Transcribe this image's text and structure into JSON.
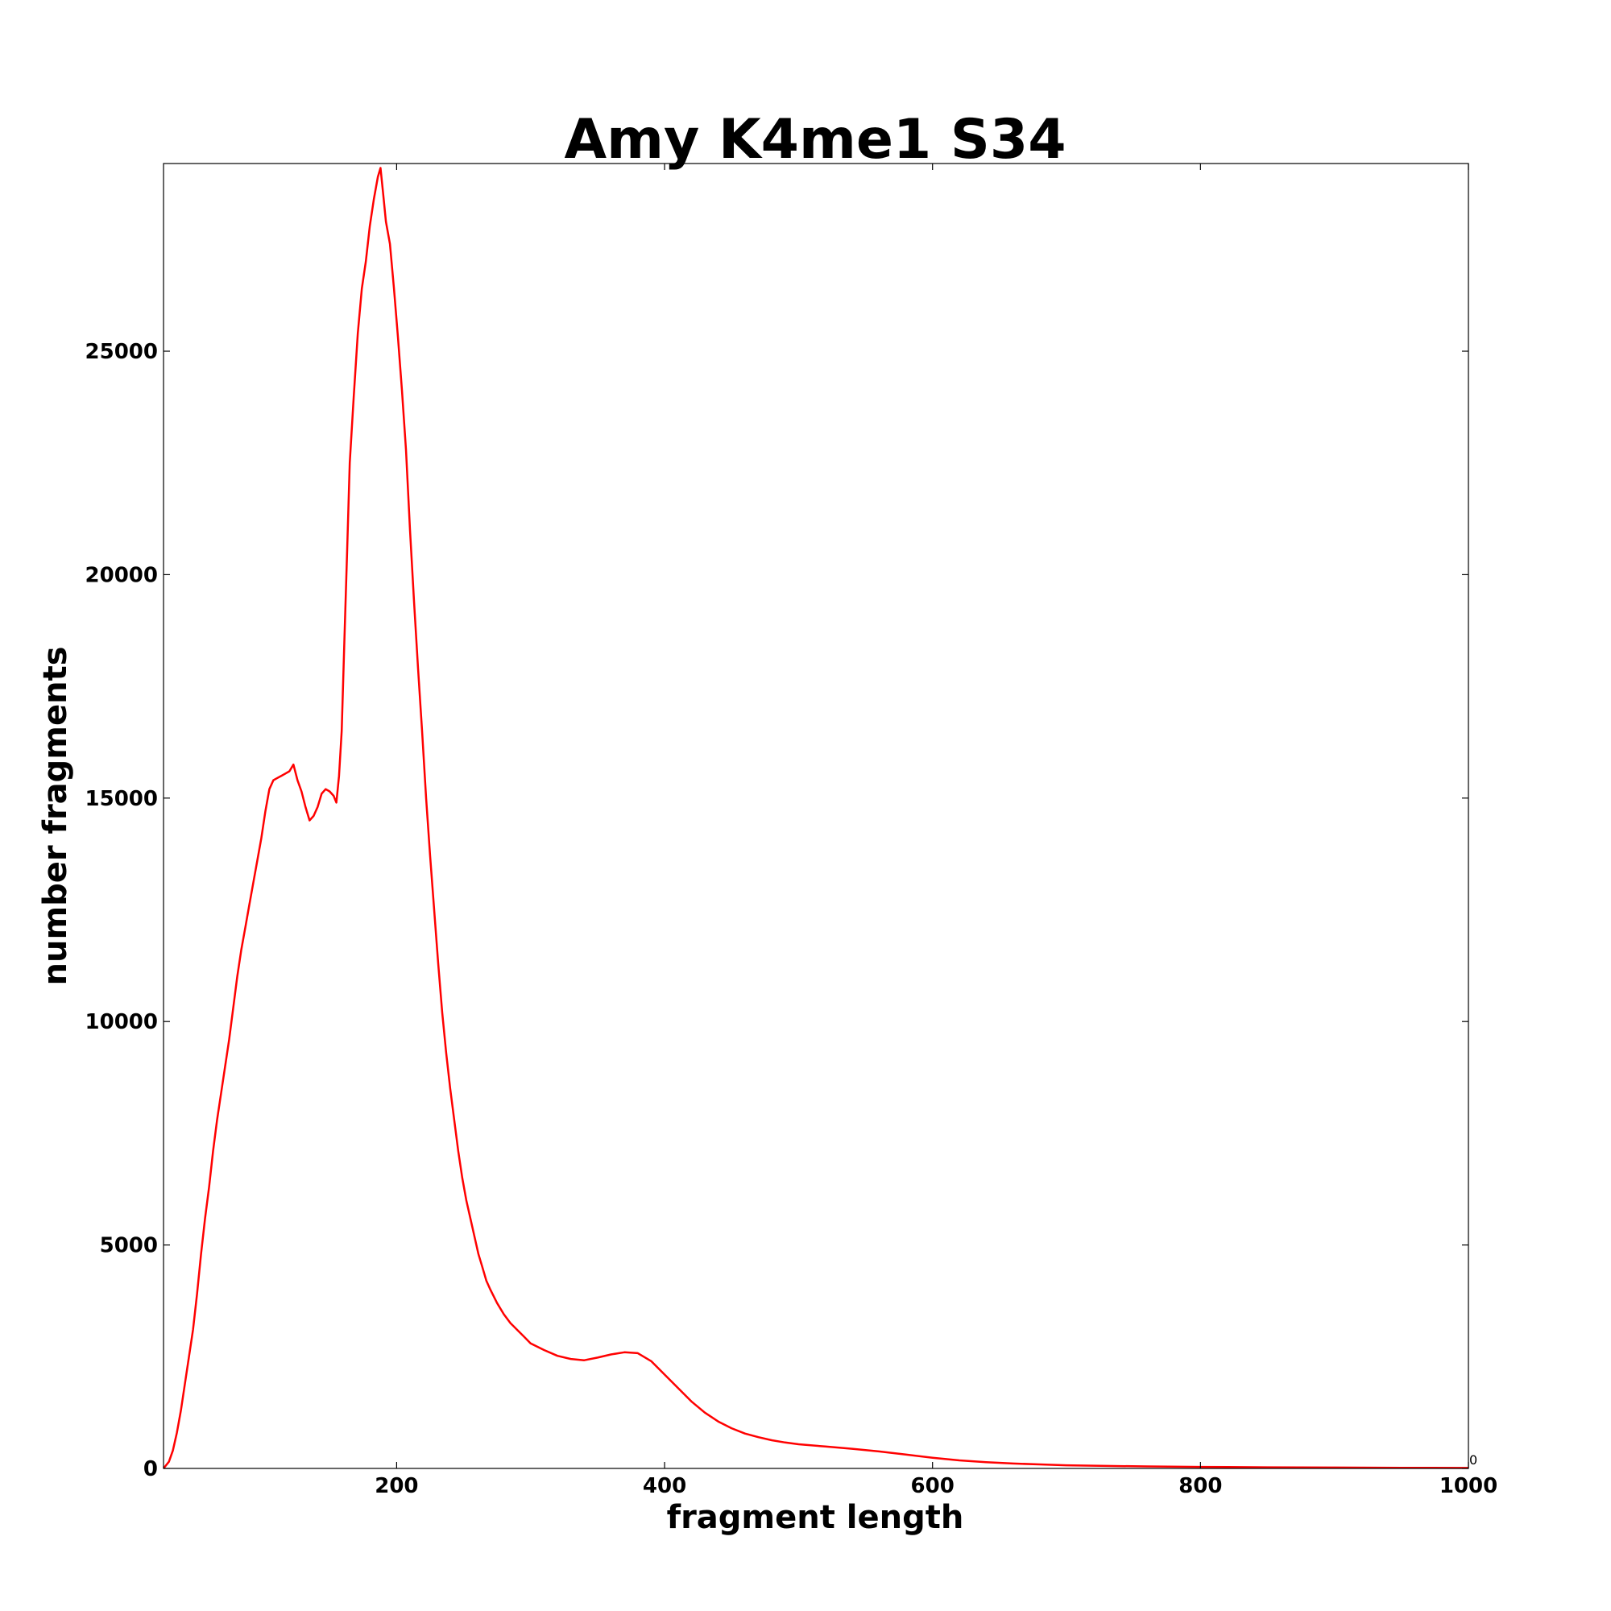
{
  "chart_data": {
    "type": "line",
    "title": "Amy K4me1 S34",
    "xlabel": "fragment length",
    "ylabel": "number fragments",
    "xlim": [
      26,
      1000
    ],
    "ylim": [
      0,
      29200
    ],
    "x_ticks": [
      200,
      400,
      600,
      800,
      1000
    ],
    "y_ticks": [
      0,
      5000,
      10000,
      15000,
      20000,
      25000
    ],
    "corner_text": "0",
    "grid": false,
    "legend": "none",
    "colors": {
      "line": "#ff0000",
      "axes": "#000000"
    },
    "series": [
      {
        "points": [
          [
            26,
            0
          ],
          [
            30,
            150
          ],
          [
            33,
            400
          ],
          [
            36,
            800
          ],
          [
            39,
            1300
          ],
          [
            42,
            1900
          ],
          [
            45,
            2500
          ],
          [
            48,
            3100
          ],
          [
            51,
            3900
          ],
          [
            54,
            4800
          ],
          [
            57,
            5600
          ],
          [
            60,
            6300
          ],
          [
            63,
            7100
          ],
          [
            66,
            7800
          ],
          [
            69,
            8400
          ],
          [
            72,
            9000
          ],
          [
            75,
            9600
          ],
          [
            78,
            10300
          ],
          [
            81,
            11000
          ],
          [
            84,
            11600
          ],
          [
            87,
            12100
          ],
          [
            90,
            12600
          ],
          [
            93,
            13100
          ],
          [
            96,
            13600
          ],
          [
            99,
            14100
          ],
          [
            102,
            14700
          ],
          [
            105,
            15200
          ],
          [
            108,
            15400
          ],
          [
            111,
            15450
          ],
          [
            114,
            15500
          ],
          [
            117,
            15550
          ],
          [
            120,
            15600
          ],
          [
            123,
            15750
          ],
          [
            126,
            15400
          ],
          [
            129,
            15150
          ],
          [
            132,
            14800
          ],
          [
            135,
            14500
          ],
          [
            138,
            14600
          ],
          [
            141,
            14800
          ],
          [
            144,
            15100
          ],
          [
            147,
            15200
          ],
          [
            150,
            15150
          ],
          [
            153,
            15050
          ],
          [
            155,
            14900
          ],
          [
            157,
            15500
          ],
          [
            159,
            16500
          ],
          [
            161,
            18500
          ],
          [
            163,
            20500
          ],
          [
            165,
            22500
          ],
          [
            168,
            24000
          ],
          [
            171,
            25400
          ],
          [
            174,
            26400
          ],
          [
            177,
            27000
          ],
          [
            180,
            27800
          ],
          [
            183,
            28400
          ],
          [
            186,
            28900
          ],
          [
            188,
            29100
          ],
          [
            190,
            28500
          ],
          [
            192,
            27900
          ],
          [
            195,
            27400
          ],
          [
            198,
            26400
          ],
          [
            201,
            25300
          ],
          [
            204,
            24100
          ],
          [
            207,
            22800
          ],
          [
            210,
            21000
          ],
          [
            213,
            19400
          ],
          [
            216,
            17900
          ],
          [
            219,
            16500
          ],
          [
            222,
            15000
          ],
          [
            225,
            13700
          ],
          [
            228,
            12500
          ],
          [
            231,
            11300
          ],
          [
            234,
            10200
          ],
          [
            237,
            9300
          ],
          [
            240,
            8500
          ],
          [
            243,
            7800
          ],
          [
            246,
            7100
          ],
          [
            249,
            6500
          ],
          [
            252,
            6000
          ],
          [
            255,
            5600
          ],
          [
            258,
            5200
          ],
          [
            261,
            4800
          ],
          [
            264,
            4500
          ],
          [
            267,
            4200
          ],
          [
            270,
            4000
          ],
          [
            275,
            3700
          ],
          [
            280,
            3450
          ],
          [
            285,
            3250
          ],
          [
            290,
            3100
          ],
          [
            295,
            2950
          ],
          [
            300,
            2800
          ],
          [
            310,
            2650
          ],
          [
            320,
            2520
          ],
          [
            330,
            2450
          ],
          [
            340,
            2420
          ],
          [
            350,
            2480
          ],
          [
            360,
            2550
          ],
          [
            370,
            2600
          ],
          [
            380,
            2580
          ],
          [
            390,
            2400
          ],
          [
            400,
            2100
          ],
          [
            410,
            1800
          ],
          [
            420,
            1500
          ],
          [
            430,
            1250
          ],
          [
            440,
            1050
          ],
          [
            450,
            900
          ],
          [
            460,
            780
          ],
          [
            470,
            700
          ],
          [
            480,
            630
          ],
          [
            490,
            580
          ],
          [
            500,
            540
          ],
          [
            520,
            490
          ],
          [
            540,
            440
          ],
          [
            560,
            380
          ],
          [
            580,
            310
          ],
          [
            600,
            240
          ],
          [
            620,
            180
          ],
          [
            640,
            140
          ],
          [
            660,
            110
          ],
          [
            680,
            90
          ],
          [
            700,
            70
          ],
          [
            730,
            55
          ],
          [
            760,
            45
          ],
          [
            800,
            35
          ],
          [
            850,
            25
          ],
          [
            900,
            20
          ],
          [
            950,
            15
          ],
          [
            1000,
            10
          ]
        ]
      }
    ]
  }
}
